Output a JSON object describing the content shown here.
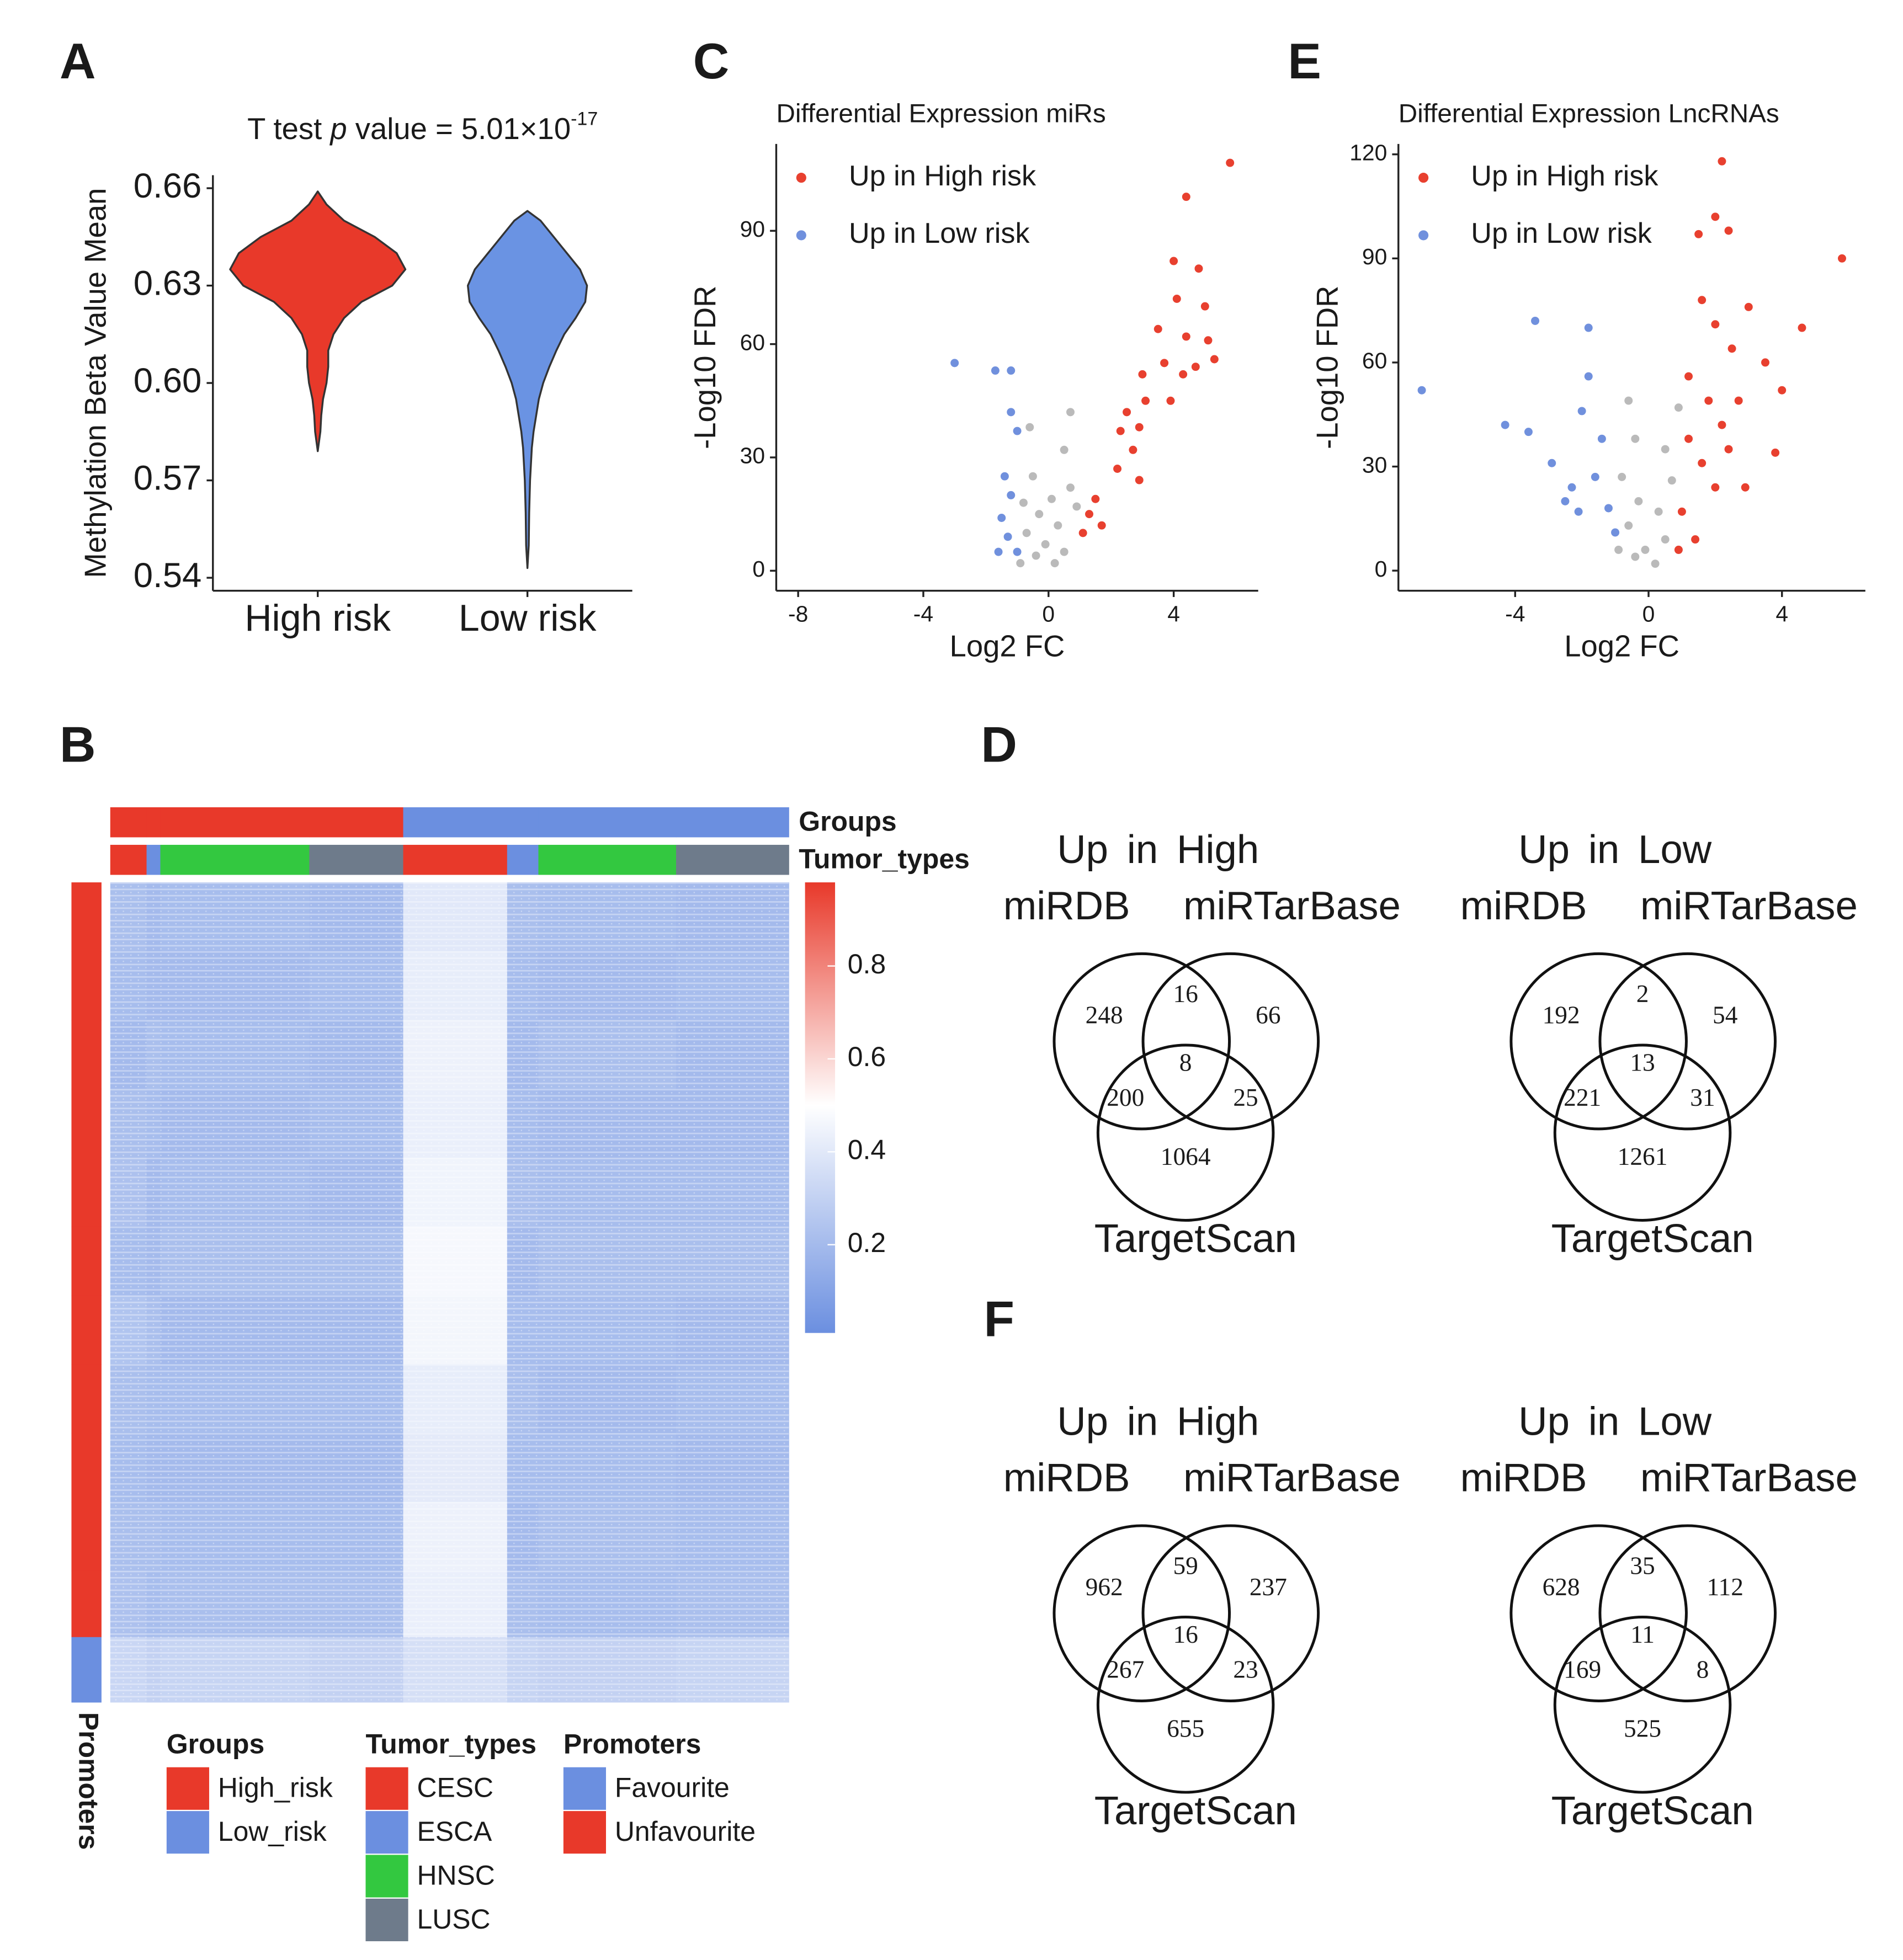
{
  "chart_data": [
    {
      "panel": "A",
      "type": "violin",
      "title": {
        "pre": "T test",
        "italic": "p",
        "post": "value  = 5.01×10",
        "sup": "-17"
      },
      "ylabel": "Methylation Beta Value Mean",
      "categories": [
        "High risk",
        "Low risk"
      ],
      "series": [
        {
          "color": "#e8392a",
          "y": [
            0.579,
            0.585,
            0.59,
            0.595,
            0.6,
            0.605,
            0.61,
            0.615,
            0.62,
            0.625,
            0.63,
            0.635,
            0.64,
            0.645,
            0.65,
            0.655,
            0.659
          ],
          "density": [
            0,
            0.03,
            0.04,
            0.06,
            0.1,
            0.12,
            0.12,
            0.18,
            0.3,
            0.5,
            0.85,
            1.0,
            0.9,
            0.65,
            0.3,
            0.1,
            0
          ]
        },
        {
          "color": "#6a93e3",
          "y": [
            0.543,
            0.55,
            0.56,
            0.57,
            0.58,
            0.585,
            0.59,
            0.595,
            0.6,
            0.605,
            0.61,
            0.615,
            0.62,
            0.625,
            0.63,
            0.635,
            0.64,
            0.645,
            0.65,
            0.653
          ],
          "density": [
            0,
            0.015,
            0.02,
            0.03,
            0.05,
            0.07,
            0.1,
            0.13,
            0.18,
            0.25,
            0.33,
            0.42,
            0.55,
            0.66,
            0.68,
            0.6,
            0.45,
            0.3,
            0.15,
            0
          ]
        }
      ],
      "ylim": [
        0.536,
        0.664
      ],
      "yticks": [
        0.54,
        0.57,
        {
          "value": 0.6,
          "label": "0.60"
        },
        0.63,
        0.66
      ]
    },
    {
      "panel": "C",
      "type": "scatter",
      "title": "Differential Expression miRs",
      "xlabel": "Log2 FC",
      "ylabel": "-Log10 FDR",
      "xlim": [
        -8.7,
        6.7
      ],
      "xticks": [
        -8,
        -4,
        0,
        4
      ],
      "ylim": [
        -5.3,
        113
      ],
      "yticks": [
        0,
        30,
        60,
        90
      ],
      "legend": "top-left",
      "series": [
        {
          "name": "Up in High risk",
          "color": "#e8402f",
          "x": [
            5.8,
            4.4,
            4.0,
            4.8,
            4.1,
            5.0,
            3.5,
            4.4,
            5.1,
            3.7,
            4.7,
            5.3,
            3.0,
            2.5,
            2.9,
            2.3,
            2.7,
            2.2,
            2.9,
            1.5,
            1.3,
            1.1,
            1.7,
            3.1,
            3.9,
            4.3
          ],
          "y": [
            108,
            99,
            82,
            80,
            72,
            70,
            64,
            62,
            61,
            55,
            54,
            56,
            52,
            42,
            38,
            37,
            32,
            27,
            24,
            19,
            15,
            10,
            12,
            45,
            45,
            52
          ]
        },
        {
          "name": "Up in Low risk",
          "color": "#7090dd",
          "x": [
            -3.0,
            -1.7,
            -1.2,
            -1.2,
            -1.0,
            -1.4,
            -1.2,
            -1.5,
            -1.3,
            -1.0,
            -1.6
          ],
          "y": [
            55,
            53,
            53,
            42,
            37,
            25,
            20,
            14,
            9,
            5,
            5
          ]
        },
        {
          "color": "#bababa",
          "x": [
            0.7,
            -0.6,
            0.5,
            -0.5,
            0.7,
            0.1,
            -0.3,
            0.3,
            -0.7,
            -0.1,
            0.5,
            -0.4,
            0.2,
            -0.9,
            0.9,
            -0.8
          ],
          "y": [
            42,
            38,
            32,
            25,
            22,
            19,
            15,
            12,
            10,
            7,
            5,
            4,
            2,
            2,
            17,
            18
          ]
        }
      ]
    },
    {
      "panel": "E",
      "type": "scatter",
      "title": "Differential Expression LncRNAs",
      "xlabel": "Log2 FC",
      "ylabel": "-Log10 FDR",
      "xlim": [
        -7.5,
        6.5
      ],
      "xticks": [
        -4,
        0,
        4
      ],
      "ylim": [
        -5.8,
        123
      ],
      "yticks": [
        0,
        30,
        60,
        90,
        120
      ],
      "legend": "top-left",
      "series": [
        {
          "name": "Up in High risk",
          "color": "#e8402f",
          "x": [
            2.2,
            5.8,
            4.6,
            2.0,
            2.4,
            1.5,
            3.5,
            4.0,
            3.8,
            2.9,
            3.0,
            1.6,
            2.0,
            2.5,
            1.2,
            1.8,
            2.2,
            1.2,
            1.6,
            2.0,
            1.0,
            1.4,
            0.9,
            2.4,
            2.7
          ],
          "y": [
            118,
            90,
            70,
            102,
            98,
            97,
            60,
            52,
            34,
            24,
            76,
            78,
            71,
            64,
            56,
            49,
            42,
            38,
            31,
            24,
            17,
            9,
            6,
            35,
            49
          ]
        },
        {
          "name": "Up in Low risk",
          "color": "#7090dd",
          "x": [
            -6.8,
            -3.4,
            -1.8,
            -4.3,
            -3.6,
            -2.9,
            -2.3,
            -1.8,
            -2.0,
            -1.4,
            -1.6,
            -1.2,
            -2.1,
            -1.0,
            -2.5
          ],
          "y": [
            52,
            72,
            70,
            42,
            40,
            31,
            24,
            56,
            46,
            38,
            27,
            18,
            17,
            11,
            20
          ]
        },
        {
          "color": "#bababa",
          "x": [
            -0.6,
            0.9,
            -0.4,
            0.5,
            -0.8,
            0.7,
            -0.3,
            0.3,
            -0.6,
            0.5,
            -0.1,
            -0.4,
            0.2,
            0.9,
            -0.9
          ],
          "y": [
            49,
            47,
            38,
            35,
            27,
            26,
            20,
            17,
            13,
            9,
            6,
            4,
            2,
            6,
            6
          ]
        }
      ]
    },
    {
      "panel": "B",
      "type": "heatmap",
      "column_annotations": [
        {
          "title": "Groups",
          "categories": [
            "High_risk",
            "Low_risk"
          ],
          "colors": [
            "#e8392a",
            "#6b8fe0"
          ]
        },
        {
          "title": "Tumor_types",
          "categories": [
            "CESC",
            "ESCA",
            "HNSC",
            "LUSC"
          ],
          "colors": [
            "#e8392a",
            "#6b8fe0",
            "#33c840",
            "#6e7b8b"
          ]
        }
      ],
      "row_annotation": {
        "title": "Promoters",
        "categories": [
          "Favourite",
          "Unfavourite"
        ],
        "colors": [
          "#6b8fe0",
          "#e8392a"
        ]
      },
      "column_blocks": {
        "group": [
          0,
          0,
          0,
          0,
          1,
          1,
          1,
          1
        ],
        "tumor_type": [
          0,
          1,
          2,
          3,
          0,
          1,
          2,
          3
        ],
        "samples": [
          29,
          11,
          119,
          75,
          83,
          25,
          110,
          90
        ]
      },
      "row_blocks": {
        "promoter": [
          1,
          1,
          1,
          1,
          1,
          1,
          1,
          1,
          1,
          1,
          1,
          0
        ],
        "count": [
          55,
          55,
          55,
          55,
          55,
          55,
          55,
          55,
          55,
          55,
          53,
          52
        ]
      },
      "values": [
        [
          0.22,
          0.2,
          0.21,
          0.2,
          0.4,
          0.22,
          0.21,
          0.2
        ],
        [
          0.21,
          0.2,
          0.2,
          0.21,
          0.42,
          0.21,
          0.2,
          0.21
        ],
        [
          0.2,
          0.22,
          0.21,
          0.2,
          0.44,
          0.2,
          0.22,
          0.2
        ],
        [
          0.22,
          0.21,
          0.2,
          0.21,
          0.43,
          0.21,
          0.2,
          0.2
        ],
        [
          0.23,
          0.2,
          0.21,
          0.2,
          0.45,
          0.22,
          0.21,
          0.21
        ],
        [
          0.21,
          0.2,
          0.22,
          0.22,
          0.47,
          0.2,
          0.22,
          0.22
        ],
        [
          0.24,
          0.22,
          0.2,
          0.2,
          0.46,
          0.21,
          0.21,
          0.2
        ],
        [
          0.22,
          0.21,
          0.21,
          0.21,
          0.42,
          0.22,
          0.2,
          0.21
        ],
        [
          0.21,
          0.2,
          0.2,
          0.2,
          0.41,
          0.21,
          0.21,
          0.2
        ],
        [
          0.22,
          0.22,
          0.21,
          0.21,
          0.44,
          0.2,
          0.22,
          0.21
        ],
        [
          0.23,
          0.21,
          0.22,
          0.22,
          0.43,
          0.22,
          0.21,
          0.22
        ],
        [
          0.32,
          0.3,
          0.31,
          0.3,
          0.36,
          0.31,
          0.3,
          0.31
        ]
      ],
      "colorbar": {
        "lim": [
          0.01,
          0.98
        ],
        "breaks": [
          0.01,
          0.5,
          0.98
        ],
        "colors": [
          "#6b8fe0",
          "#ffffff",
          "#e8392a"
        ],
        "ticks": [
          0.2,
          0.4,
          0.6,
          0.8
        ]
      }
    },
    {
      "panel": "D",
      "type": "venn",
      "title": "Up  in  High",
      "sets": [
        "miRDB",
        "miRTarBase",
        "TargetScan"
      ],
      "values": [
        248,
        16,
        66,
        8,
        200,
        25,
        1064
      ]
    },
    {
      "type": "venn",
      "title": "Up  in  Low",
      "sets": [
        "miRDB",
        "miRTarBase",
        "TargetScan"
      ],
      "values": [
        192,
        2,
        54,
        13,
        221,
        31,
        1261
      ]
    },
    {
      "panel": "F",
      "type": "venn",
      "title": "Up  in  High",
      "sets": [
        "miRDB",
        "miRTarBase",
        "TargetScan"
      ],
      "values": [
        962,
        59,
        237,
        16,
        267,
        23,
        655
      ]
    },
    {
      "type": "venn",
      "title": "Up  in  Low",
      "sets": [
        "miRDB",
        "miRTarBase",
        "TargetScan"
      ],
      "values": [
        628,
        35,
        112,
        11,
        169,
        8,
        525
      ]
    }
  ]
}
